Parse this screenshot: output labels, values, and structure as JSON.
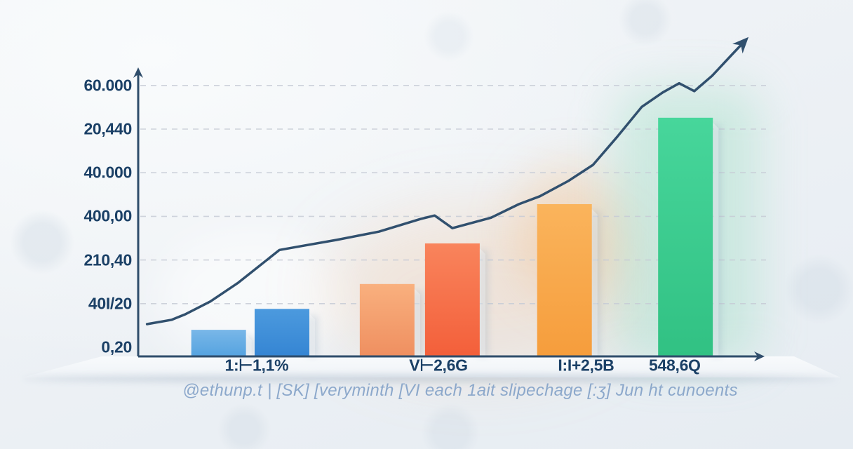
{
  "chart_data": {
    "type": "bar",
    "overlay": "line",
    "title": "",
    "y_axis": {
      "tick_labels": [
        "60.000",
        "20,440",
        "40.000",
        "400,00",
        "210,40",
        "40I/20",
        "0,20"
      ],
      "tick_values": [
        60000,
        50000,
        40000,
        30000,
        20000,
        10000,
        0
      ],
      "ylim": [
        0,
        72000
      ],
      "grid": "dashed-horizontal"
    },
    "x_axis": {
      "tick_labels": [
        "1:⊢1,1%",
        "V⊢2,6G",
        "I:I+2,5B",
        "548,6Q"
      ],
      "tick_positions": [
        0.187,
        0.474,
        0.707,
        0.847
      ]
    },
    "bars": [
      {
        "value": 4000,
        "x": 0.127,
        "color_top": "#79b7e8",
        "color_bottom": "#55a3e0"
      },
      {
        "value": 8800,
        "x": 0.227,
        "color_top": "#4c9ade",
        "color_bottom": "#3585d3"
      },
      {
        "value": 14500,
        "x": 0.393,
        "color_top": "#f9b07e",
        "color_bottom": "#ef8f60"
      },
      {
        "value": 23800,
        "x": 0.496,
        "color_top": "#f9845c",
        "color_bottom": "#f35f3a"
      },
      {
        "value": 32800,
        "x": 0.673,
        "color_top": "#fab45c",
        "color_bottom": "#f69d3c"
      },
      {
        "value": 52600,
        "x": 0.864,
        "color_top": "#47d69b",
        "color_bottom": "#31c183"
      }
    ],
    "line": {
      "color": "#31506e",
      "points": [
        [
          0.014,
          5300
        ],
        [
          0.053,
          6300
        ],
        [
          0.075,
          7600
        ],
        [
          0.114,
          10500
        ],
        [
          0.158,
          14800
        ],
        [
          0.223,
          22300
        ],
        [
          0.258,
          23200
        ],
        [
          0.313,
          24600
        ],
        [
          0.38,
          26500
        ],
        [
          0.446,
          29400
        ],
        [
          0.468,
          30200
        ],
        [
          0.496,
          27300
        ],
        [
          0.557,
          29700
        ],
        [
          0.601,
          32800
        ],
        [
          0.634,
          34600
        ],
        [
          0.679,
          38100
        ],
        [
          0.718,
          41800
        ],
        [
          0.756,
          48200
        ],
        [
          0.795,
          55100
        ],
        [
          0.828,
          58400
        ],
        [
          0.854,
          60500
        ],
        [
          0.878,
          58700
        ],
        [
          0.906,
          62200
        ],
        [
          0.933,
          66400
        ],
        [
          0.959,
          70400
        ]
      ]
    },
    "axis_color": "#2f4d6b",
    "tick_label_color": "#1b4066",
    "grid_color": "#c7ccd6",
    "legend": "none"
  },
  "caption": {
    "text": "@ethunp.t | [SK] [veryminth [VI each 1ait slipechage [:ʒ] Jun ht cunoents"
  }
}
